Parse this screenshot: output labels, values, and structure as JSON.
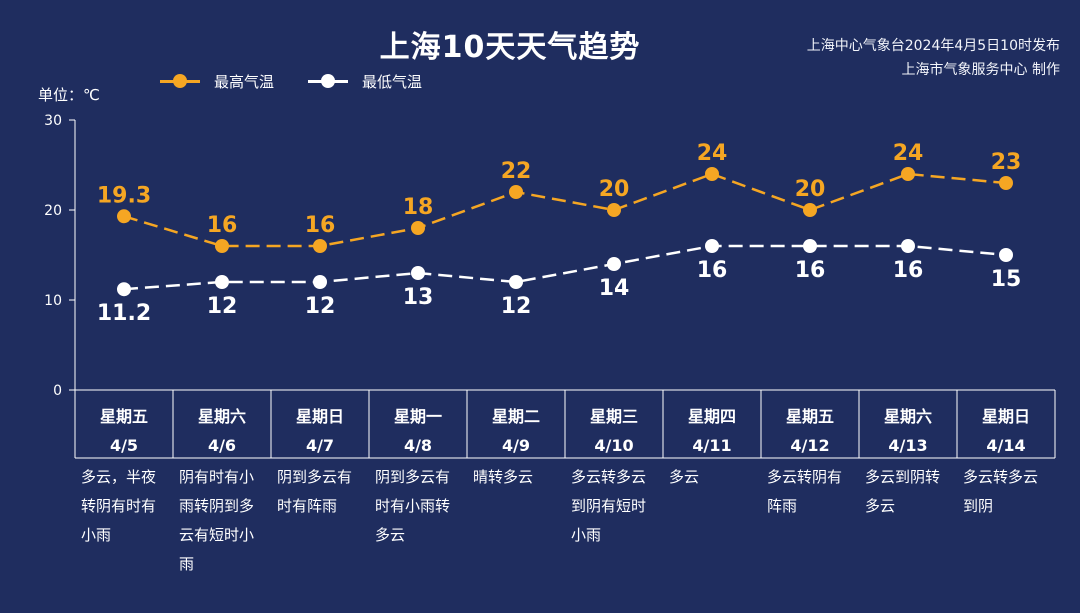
{
  "title": "上海10天天气趋势",
  "source_lines": [
    "上海中心气象台2024年4月5日10时发布",
    "上海市气象服务中心 制作"
  ],
  "unit_label": "单位：℃",
  "colors": {
    "background": "#1f2d5f",
    "high": "#f5a623",
    "low": "#ffffff"
  },
  "chart_data": {
    "type": "line",
    "ylim": [
      0,
      30
    ],
    "yticks": [
      0,
      10,
      20,
      30
    ],
    "series": [
      {
        "name": "最高气温",
        "values": [
          19.3,
          16,
          16,
          18,
          22,
          20,
          24,
          20,
          24,
          23
        ],
        "labels": [
          "19.3",
          "16",
          "16",
          "18",
          "22",
          "20",
          "24",
          "20",
          "24",
          "23"
        ]
      },
      {
        "name": "最低气温",
        "values": [
          11.2,
          12,
          12,
          13,
          12,
          14,
          16,
          16,
          16,
          15
        ],
        "labels": [
          "11.2",
          "12",
          "12",
          "13",
          "12",
          "14",
          "16",
          "16",
          "16",
          "15"
        ]
      }
    ],
    "days": [
      {
        "weekday": "星期五",
        "date": "4/5",
        "weather": "多云，半夜转阴有时有小雨"
      },
      {
        "weekday": "星期六",
        "date": "4/6",
        "weather": "阴有时有小雨转阴到多云有短时小雨"
      },
      {
        "weekday": "星期日",
        "date": "4/7",
        "weather": "阴到多云有时有阵雨"
      },
      {
        "weekday": "星期一",
        "date": "4/8",
        "weather": "阴到多云有时有小雨转多云"
      },
      {
        "weekday": "星期二",
        "date": "4/9",
        "weather": "晴转多云"
      },
      {
        "weekday": "星期三",
        "date": "4/10",
        "weather": "多云转多云到阴有短时小雨"
      },
      {
        "weekday": "星期四",
        "date": "4/11",
        "weather": "多云"
      },
      {
        "weekday": "星期五",
        "date": "4/12",
        "weather": "多云转阴有阵雨"
      },
      {
        "weekday": "星期六",
        "date": "4/13",
        "weather": "多云到阴转多云"
      },
      {
        "weekday": "星期日",
        "date": "4/14",
        "weather": "多云转多云到阴"
      }
    ]
  }
}
